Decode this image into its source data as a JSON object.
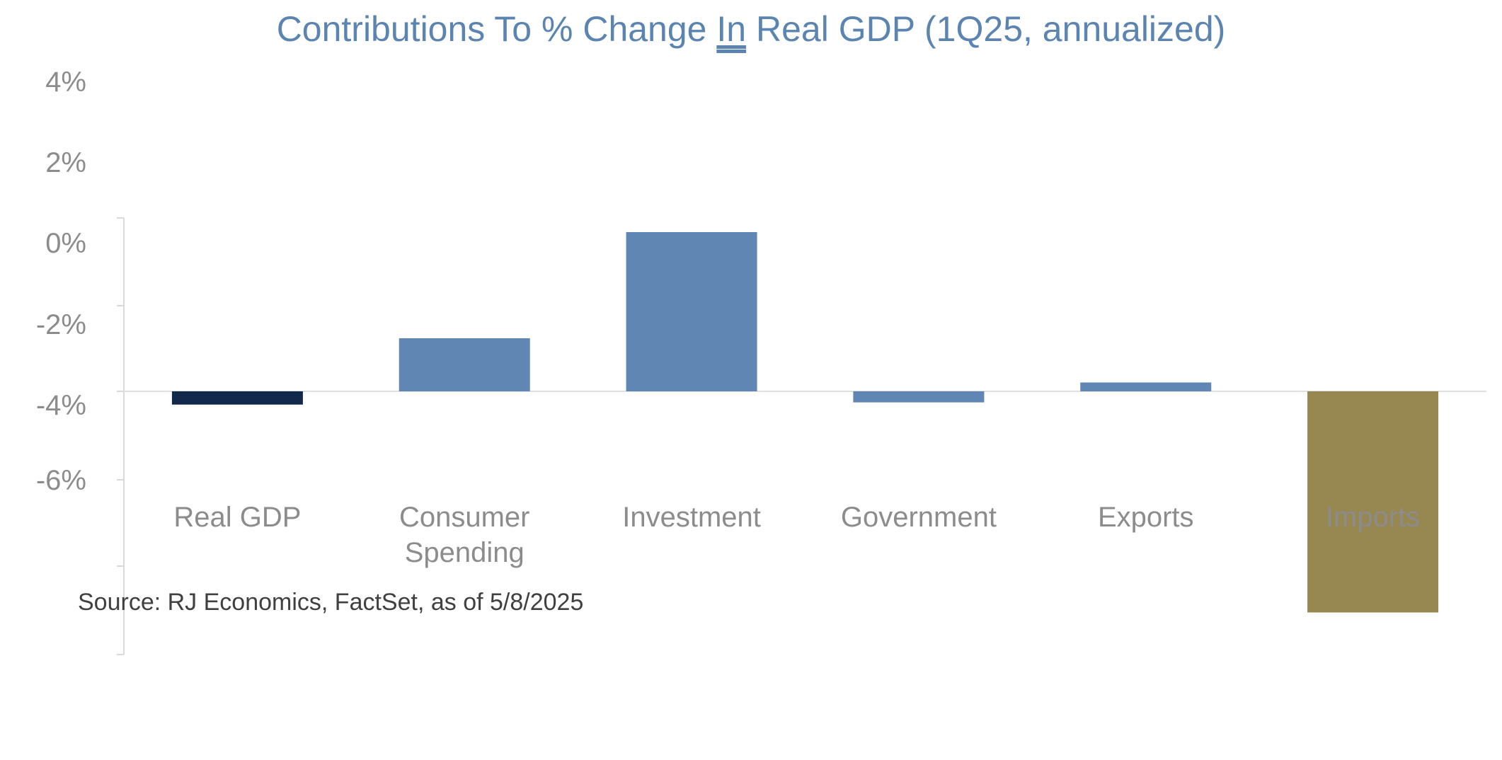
{
  "chart_data": {
    "type": "bar",
    "title_parts": [
      "Contributions To % Change ",
      "In",
      " Real GDP (1Q25, annualized)"
    ],
    "categories": [
      "Real GDP",
      "Consumer Spending",
      "Investment",
      "Government",
      "Exports",
      "Imports"
    ],
    "category_lines": [
      [
        "Real GDP"
      ],
      [
        "Consumer",
        "Spending"
      ],
      [
        "Investment"
      ],
      [
        "Government"
      ],
      [
        "Exports"
      ],
      [
        "Imports"
      ]
    ],
    "values": [
      -0.3,
      1.2,
      3.6,
      -0.25,
      0.2,
      -5.0
    ],
    "bar_colors": [
      "#13294b",
      "#6086b4",
      "#6086b4",
      "#6086b4",
      "#6086b4",
      "#978751"
    ],
    "tick_labels": [
      "4%",
      "2%",
      "0%",
      "-2%",
      "-4%",
      "-6%"
    ],
    "ylabel": "",
    "xlabel": "",
    "ylim": [
      -6.5,
      4
    ],
    "grid": false,
    "legend": "none",
    "source": "Source: RJ Economics, FactSet, as of 5/8/2025",
    "colors": {
      "title": "#5b84b1",
      "axis_text": "#8c8c8c",
      "source_text": "#404040",
      "axis_line": "#d9d9d9",
      "zero_line": "#e0e0e0"
    }
  }
}
